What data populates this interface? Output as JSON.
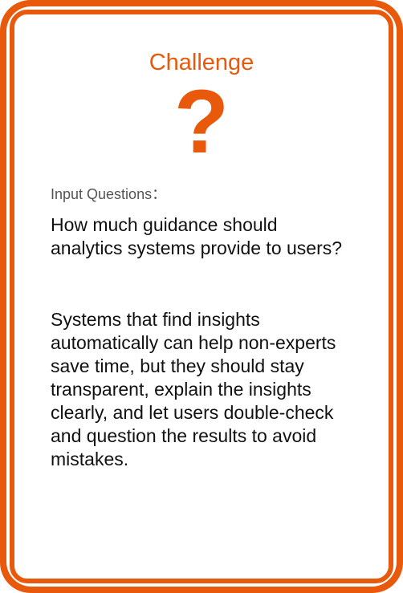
{
  "card": {
    "title": "Challenge",
    "symbol": "?",
    "prompt_label": "Input Questions：",
    "question": "How much guidance should analytics systems provide to users?",
    "answer": "Systems that find insights automatically can help non-experts save time, but they should stay transparent, explain the insights clearly, and let users double-check and question the results to avoid mistakes."
  },
  "colors": {
    "accent": "#e8590c",
    "text": "#111111",
    "label": "#555555",
    "background": "#ffffff"
  }
}
